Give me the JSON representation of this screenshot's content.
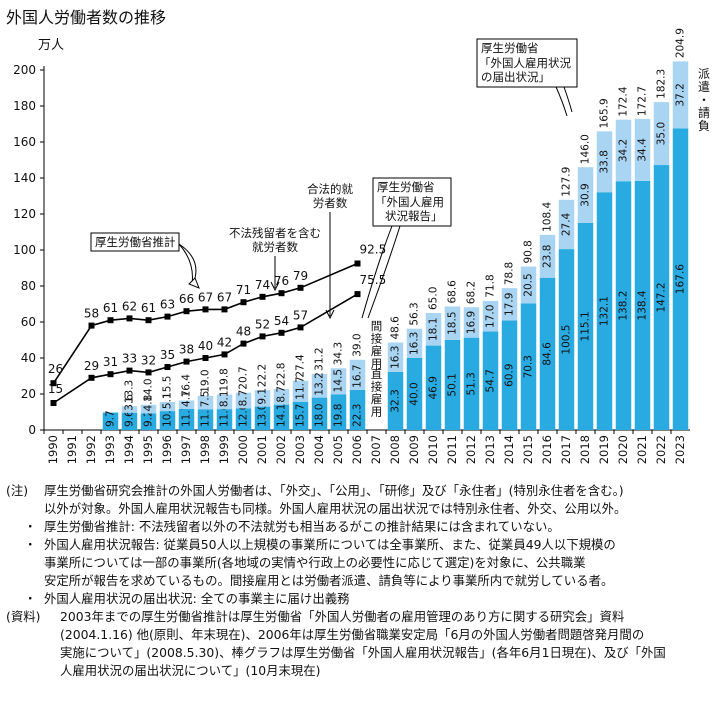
{
  "title": "外国人労働者数の推移",
  "chart_data": {
    "type": "bar",
    "unit_label": "万人",
    "ylim": [
      0,
      210
    ],
    "yticks": [
      0,
      20,
      40,
      60,
      80,
      100,
      120,
      140,
      160,
      180,
      200
    ],
    "grid": false,
    "years": [
      "1990",
      "1991",
      "1992",
      "1993",
      "1994",
      "1995",
      "1996",
      "1997",
      "1998",
      "1999",
      "2000",
      "2001",
      "2002",
      "2003",
      "2004",
      "2005",
      "2006",
      "2007",
      "2008",
      "2009",
      "2010",
      "2011",
      "2012",
      "2013",
      "2014",
      "2015",
      "2016",
      "2017",
      "2018",
      "2019",
      "2020",
      "2021",
      "2022",
      "2023"
    ],
    "report_bars": {
      "years": [
        "1993",
        "1994",
        "1995",
        "1996",
        "1997",
        "1998",
        "1999",
        "2000",
        "2001",
        "2002",
        "2003",
        "2004",
        "2005",
        "2006"
      ],
      "direct": [
        9.7,
        9.6,
        9.2,
        10.5,
        11.7,
        11.5,
        11.6,
        12.0,
        13.0,
        14.1,
        15.7,
        18.0,
        19.8,
        22.3
      ],
      "indirect": [
        null,
        3.6,
        4.8,
        5.1,
        4.7,
        7.5,
        8.1,
        8.7,
        9.1,
        8.7,
        11.7,
        13.2,
        14.5,
        16.7
      ],
      "labels_direct": [
        "9.7",
        "9.6",
        "9.2",
        "10.5",
        "11.7",
        "11.5",
        "11.6",
        "12.0",
        "13.0",
        "14.1",
        "15.7",
        "18.0",
        "19.8",
        "22.3"
      ],
      "labels_indirect": [
        "",
        "3.6",
        "4.8",
        "5.1",
        "4.7",
        "7.5",
        "8.1",
        "8.7",
        "9.1",
        "8.7",
        "11.7",
        "13.2",
        "14.5",
        "16.7"
      ],
      "labels_total": [
        "",
        "13.3",
        "14.0",
        "15.5",
        "16.4",
        "19.0",
        "19.8",
        "20.7",
        "22.2",
        "22.8",
        "27.4",
        "31.2",
        "34.3",
        "39.0"
      ],
      "legend_direct": "直接雇用",
      "legend_indirect": "間接雇用"
    },
    "notification_bars": {
      "years": [
        "2008",
        "2009",
        "2010",
        "2011",
        "2012",
        "2013",
        "2014",
        "2015",
        "2016",
        "2017",
        "2018",
        "2019",
        "2020",
        "2021",
        "2022",
        "2023"
      ],
      "direct": [
        32.3,
        40.0,
        46.9,
        50.1,
        51.3,
        54.7,
        60.9,
        70.3,
        84.6,
        100.5,
        115.1,
        132.1,
        138.2,
        138.4,
        147.2,
        167.6
      ],
      "dispatch": [
        16.3,
        16.3,
        18.1,
        18.5,
        16.9,
        17.0,
        17.9,
        20.5,
        23.8,
        27.4,
        30.9,
        33.8,
        34.2,
        34.4,
        35.0,
        37.2
      ],
      "total": [
        48.6,
        56.3,
        65.0,
        68.6,
        68.2,
        71.8,
        78.8,
        90.8,
        108.4,
        127.9,
        146.0,
        165.9,
        172.4,
        172.7,
        182.3,
        204.9
      ],
      "labels_direct": [
        "32.3",
        "40.0",
        "46.9",
        "50.1",
        "51.3",
        "54.7",
        "60.9",
        "70.3",
        "84.6",
        "100.5",
        "115.1",
        "132.1",
        "138.2",
        "138.4",
        "147.2",
        "167.6"
      ],
      "labels_dispatch": [
        "16.3",
        "16.3",
        "18.1",
        "18.5",
        "16.9",
        "17.0",
        "17.9",
        "20.5",
        "23.8",
        "27.4",
        "30.9",
        "33.8",
        "34.2",
        "34.4",
        "35.0",
        "37.2"
      ],
      "labels_total": [
        "48.6",
        "56.3",
        "65.0",
        "68.6",
        "68.2",
        "71.8",
        "78.8",
        "90.8",
        "108.4",
        "127.9",
        "146.0",
        "165.9",
        "172.4",
        "172.7",
        "182.3",
        "204.9"
      ],
      "legend_dispatch": "派遣・請負"
    },
    "lines": [
      {
        "name": "合法的就労者数",
        "years": [
          "1990",
          "1992",
          "1993",
          "1994",
          "1995",
          "1996",
          "1997",
          "1998",
          "1999",
          "2000",
          "2001",
          "2002",
          "2003",
          "2006"
        ],
        "values": [
          15,
          29,
          31,
          33,
          32,
          35,
          38,
          40,
          42,
          48,
          52,
          54,
          57,
          75.5
        ],
        "labels": [
          "15",
          "29",
          "31",
          "33",
          "32",
          "35",
          "38",
          "40",
          "42",
          "48",
          "52",
          "54",
          "57",
          "75.5"
        ]
      },
      {
        "name": "不法残留者を含む就労者数",
        "years": [
          "1990",
          "1992",
          "1993",
          "1994",
          "1995",
          "1996",
          "1997",
          "1998",
          "1999",
          "2000",
          "2001",
          "2002",
          "2003",
          "2006"
        ],
        "values": [
          26,
          58,
          61,
          62,
          61,
          63,
          66,
          67,
          67,
          71,
          74,
          76,
          79,
          92.5
        ],
        "labels": [
          "26",
          "58",
          "61",
          "62",
          "61",
          "63",
          "66",
          "67",
          "67",
          "71",
          "74",
          "76",
          "79",
          "92.5"
        ]
      }
    ],
    "annotations": {
      "estimate": "厚生労働省推計",
      "illegal_line": [
        "不法残留者を含む",
        "就労者数"
      ],
      "legal_line": [
        "合法的就",
        "労者数"
      ],
      "report": [
        "厚生労働省",
        "「外国人雇用",
        "状況報告」"
      ],
      "notification": [
        "厚生労働省",
        "「外国人雇用状況",
        "の届出状況」"
      ]
    },
    "colors": {
      "direct": "#29ABE2",
      "secondary": "#A9D4F2",
      "line": "#000000"
    }
  },
  "notes": [
    {
      "head": "(注)",
      "text": "厚生労働省研究会推計の外国人労働者は、「外交」、「公用」、「研修」及び「永住者」(特別永住者を含む。)"
    },
    {
      "head": "",
      "text": "以外が対象。外国人雇用状況報告も同様。外国人雇用状況の届出状況では特別永住者、外交、公用以外。"
    },
    {
      "head": "・",
      "text": "厚生労働省推計: 不法残留者以外の不法就労も相当あるがこの推計結果には含まれていない。"
    },
    {
      "head": "・",
      "text": "外国人雇用状況報告: 従業員50人以上規模の事業所については全事業所、また、従業員49人以下規模の"
    },
    {
      "head": "",
      "text": "事業所については一部の事業所(各地域の実情や行政上の必要性に応じて選定)を対象に、公共職業"
    },
    {
      "head": "",
      "text": "安定所が報告を求めているもの。間接雇用とは労働者派遣、請負等により事業所内で就労している者。"
    },
    {
      "head": "・",
      "text": "外国人雇用状況の届出状況: 全ての事業主に届け出義務"
    },
    {
      "head": "(資料)",
      "text": "2003年までの厚生労働省推計は厚生労働省「外国人労働者の雇用管理のあり方に関する研究会」資料"
    },
    {
      "head": "",
      "text": "(2004.1.16) 他(原則、年末現在)、2006年は厚生労働省職業安定局「6月の外国人労働者問題啓発月間の"
    },
    {
      "head": "",
      "text": "実施について」(2008.5.30)、棒グラフは厚生労働省「外国人雇用状況報告」(各年6月1日現在)、及び「外国"
    },
    {
      "head": "",
      "text": "人雇用状況の届出状況について」(10月末現在)"
    }
  ]
}
